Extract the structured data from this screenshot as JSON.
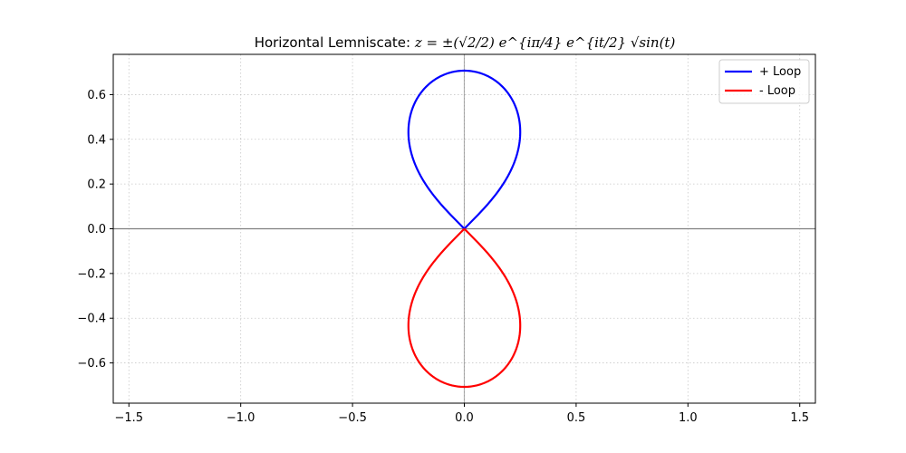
{
  "chart_data": {
    "type": "line",
    "title_prefix": "Horizontal Lemniscate: ",
    "title_formula": "z = ±(√2/2) e^{iπ/4} e^{it/2} √sin(t)",
    "xlabel": "",
    "ylabel": "",
    "xlim": [
      -1.57,
      1.57
    ],
    "ylim": [
      -0.78,
      0.78
    ],
    "xticks": [
      -1.5,
      -1.0,
      -0.5,
      0.0,
      0.5,
      1.0,
      1.5
    ],
    "xtick_labels": [
      "−1.5",
      "−1.0",
      "−0.5",
      "0.0",
      "0.5",
      "1.0",
      "1.5"
    ],
    "yticks": [
      -0.6,
      -0.4,
      -0.2,
      0.0,
      0.2,
      0.4,
      0.6
    ],
    "ytick_labels": [
      "−0.6",
      "−0.4",
      "−0.2",
      "0.0",
      "0.2",
      "0.4",
      "0.6"
    ],
    "grid": true,
    "legend_position": "top-right",
    "series": [
      {
        "name": "+ Loop",
        "color": "#0000ff",
        "sign": 1
      },
      {
        "name": "- Loop",
        "color": "#ff0000",
        "sign": -1
      }
    ],
    "param": {
      "t_start": 0,
      "t_end": 3.14159265,
      "samples": 200
    }
  }
}
